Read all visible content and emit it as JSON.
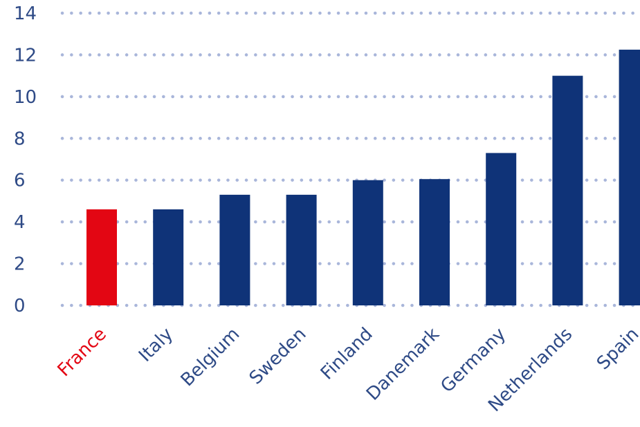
{
  "chart_data": {
    "type": "bar",
    "categories": [
      "France",
      "Italy",
      "Belgium",
      "Sweden",
      "Finland",
      "Danemark",
      "Germany",
      "Netherlands",
      "Spain"
    ],
    "values": [
      4.6,
      4.6,
      5.3,
      5.3,
      6.0,
      6.05,
      7.3,
      11.0,
      12.25
    ],
    "highlight": "France",
    "ylim": [
      0,
      14
    ],
    "yticks": [
      "0",
      "2",
      "4",
      "6",
      "8",
      "10",
      "12",
      "14"
    ],
    "grid": true,
    "grid_style": "dotted",
    "colors": {
      "bar": "#0f3378",
      "highlight": "#e30613",
      "grid": "#a9b6da",
      "label": "#2e4a86"
    }
  }
}
